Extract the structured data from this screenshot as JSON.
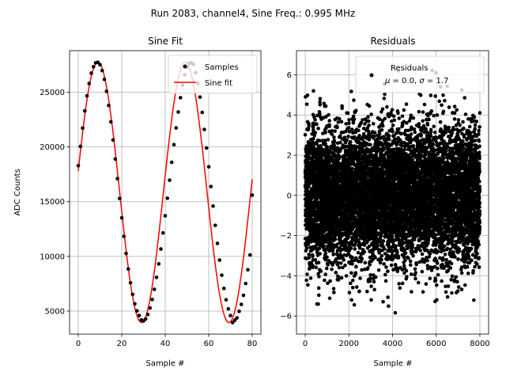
{
  "suptitle": "Run 2083, channel4, Sine Freq.: 0.995 MHz",
  "chart_data": [
    {
      "type": "line",
      "title": "Sine Fit",
      "xlabel": "Sample #",
      "ylabel": "ADC Counts",
      "xlim": [
        -4,
        84
      ],
      "ylim": [
        2900,
        28800
      ],
      "xticks": [
        0,
        20,
        40,
        60,
        80
      ],
      "yticks": [
        5000,
        10000,
        15000,
        20000,
        25000
      ],
      "grid": true,
      "legend": {
        "placement": "upper right",
        "entries": [
          "Samples",
          "Sine fit"
        ]
      },
      "fit_model": {
        "offset": 15850,
        "amplitude": 11900,
        "period_samples": 40.2,
        "peak_sample": 9
      },
      "series": [
        {
          "name": "Samples",
          "kind": "scatter",
          "color": "#000000",
          "x": [
            0,
            1,
            2,
            3,
            4,
            5,
            6,
            7,
            8,
            9,
            10,
            11,
            12,
            13,
            14,
            15,
            16,
            17,
            18,
            19,
            20,
            21,
            22,
            23,
            24,
            25,
            26,
            27,
            28,
            29,
            30,
            31,
            32,
            33,
            34,
            35,
            36,
            37,
            38,
            39,
            40,
            41,
            42,
            43,
            44,
            45,
            46,
            47,
            48,
            49,
            50,
            51,
            52,
            53,
            54,
            55,
            56,
            57,
            58,
            59,
            60,
            61,
            62,
            63,
            64,
            65,
            66,
            67,
            68,
            69,
            70,
            71,
            72,
            73,
            74,
            75,
            76,
            77,
            78,
            79,
            80
          ],
          "y": [
            18293,
            20050,
            21728,
            23294,
            24671,
            25801,
            26740,
            27336,
            27686,
            27740,
            27519,
            26981,
            26179,
            25087,
            23794,
            22295,
            20642,
            18897,
            17103,
            15293,
            13526,
            11833,
            10268,
            8846,
            7591,
            6525,
            5666,
            5023,
            4594,
            4200,
            4100,
            4281,
            4691,
            5283,
            6060,
            6989,
            8083,
            9315,
            10674,
            12145,
            13714,
            15317,
            16960,
            18600,
            20207,
            21740,
            23197,
            24503,
            25643,
            26595,
            27304,
            27633,
            27693,
            27549,
            26795,
            25822,
            24556,
            23160,
            21600,
            19910,
            18190,
            16383,
            14595,
            12835,
            11188,
            9663,
            8282,
            7071,
            6037,
            5207,
            4588,
            3953,
            4170,
            4383,
            4984,
            5615,
            6441,
            7521,
            8781,
            10132,
            15600
          ]
        },
        {
          "name": "Sine fit",
          "kind": "line",
          "color": "#ff0000"
        }
      ]
    },
    {
      "type": "scatter",
      "title": "Residuals",
      "xlabel": "Sample #",
      "ylabel": "",
      "xlim": [
        -400,
        8400
      ],
      "ylim": [
        -6.9,
        7.2
      ],
      "xticks": [
        0,
        2000,
        4000,
        6000,
        8000
      ],
      "yticks": [
        -6,
        -4,
        -2,
        0,
        2,
        4,
        6
      ],
      "grid": true,
      "legend": {
        "placement": "upper right",
        "entries": [
          "Residuals",
          "$\\mu$ = 0.0, $\\sigma$ = 1.7"
        ]
      },
      "series": [
        {
          "name": "Residuals",
          "color": "#000000",
          "n_points": 8000,
          "mean": 0.0,
          "sigma": 1.7,
          "x_range": [
            0,
            7999
          ]
        }
      ]
    }
  ]
}
